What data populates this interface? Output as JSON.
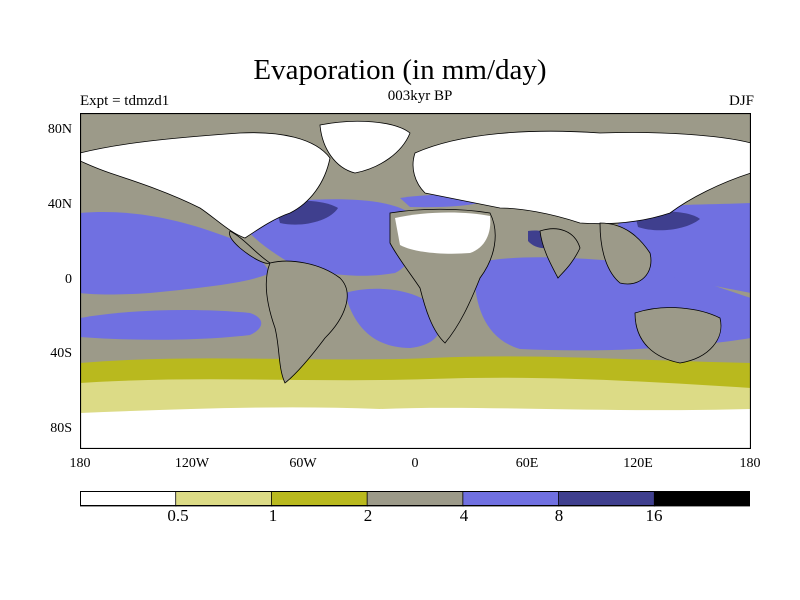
{
  "title": "Evaporation (in mm/day)",
  "subtitle": "003kyr BP",
  "experiment": "Expt = tdmzd1",
  "season": "DJF",
  "lat_ticks": [
    "80N",
    "40N",
    "0",
    "40S",
    "80S"
  ],
  "lon_ticks": [
    "180",
    "120W",
    "60W",
    "0",
    "60E",
    "120E",
    "180"
  ],
  "colorbar": {
    "colors": [
      "#ffffff",
      "#dcdb86",
      "#b9b91e",
      "#9c9a89",
      "#7070e1",
      "#3f3f8e",
      "#000000"
    ],
    "labels": [
      "0.5",
      "1",
      "2",
      "4",
      "8",
      "16"
    ]
  }
}
